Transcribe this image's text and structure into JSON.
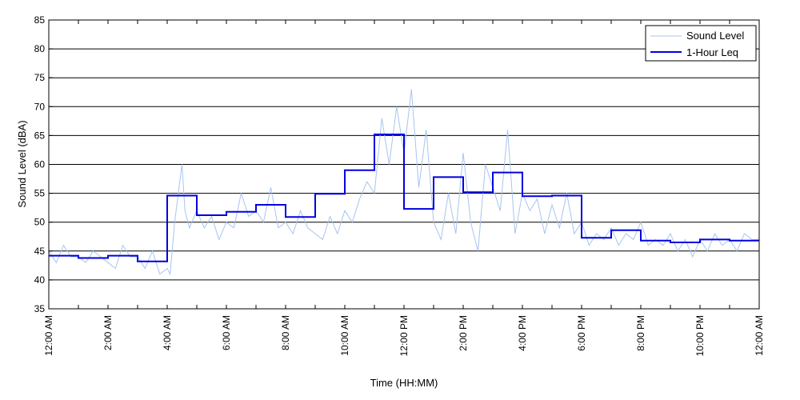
{
  "chart_data": {
    "type": "line",
    "title": "",
    "xlabel": "Time (HH:MM)",
    "ylabel": "Sound Level (dBA)",
    "ylim": [
      35,
      85
    ],
    "xlim": [
      0,
      24
    ],
    "yticks": [
      35,
      40,
      45,
      50,
      55,
      60,
      65,
      70,
      75,
      80,
      85
    ],
    "xticks": [
      0,
      2,
      4,
      6,
      8,
      10,
      12,
      14,
      16,
      18,
      20,
      22,
      24
    ],
    "xtick_labels": [
      "12:00 AM",
      "2:00 AM",
      "4:00 AM",
      "6:00 AM",
      "8:00 AM",
      "10:00 AM",
      "12:00 PM",
      "2:00 PM",
      "4:00 PM",
      "6:00 PM",
      "8:00 PM",
      "10:00 PM",
      "12:00 AM"
    ],
    "grid": "horizontal",
    "legend_position": "top-right",
    "series": [
      {
        "name": "Sound Level",
        "color": "#a8c4f0",
        "style": "thin-line",
        "x": [
          0,
          0.25,
          0.5,
          0.75,
          1,
          1.25,
          1.5,
          1.75,
          2,
          2.25,
          2.5,
          2.75,
          3,
          3.25,
          3.5,
          3.75,
          4,
          4.1,
          4.25,
          4.5,
          4.6,
          4.75,
          5,
          5.25,
          5.5,
          5.75,
          6,
          6.25,
          6.5,
          6.75,
          7,
          7.25,
          7.5,
          7.75,
          8,
          8.25,
          8.5,
          8.75,
          9,
          9.25,
          9.5,
          9.75,
          10,
          10.25,
          10.5,
          10.75,
          11,
          11.25,
          11.5,
          11.75,
          12,
          12.25,
          12.5,
          12.75,
          13,
          13.25,
          13.5,
          13.75,
          14,
          14.25,
          14.5,
          14.75,
          15,
          15.25,
          15.5,
          15.75,
          16,
          16.25,
          16.5,
          16.75,
          17,
          17.25,
          17.5,
          17.75,
          18,
          18.25,
          18.5,
          18.75,
          19,
          19.25,
          19.5,
          19.75,
          20,
          20.25,
          20.5,
          20.75,
          21,
          21.25,
          21.5,
          21.75,
          22,
          22.25,
          22.5,
          22.75,
          23,
          23.25,
          23.5,
          23.75,
          24
        ],
        "y": [
          45,
          43,
          46,
          44,
          44,
          43,
          45,
          44,
          43,
          42,
          46,
          44,
          44,
          42,
          45,
          41,
          42,
          41,
          50,
          60,
          52,
          49,
          52,
          49,
          51,
          47,
          50,
          49,
          55,
          51,
          52,
          50,
          56,
          49,
          50,
          48,
          52,
          49,
          48,
          47,
          51,
          48,
          52,
          50,
          54,
          57,
          55,
          68,
          60,
          70,
          62,
          73,
          56,
          66,
          50,
          47,
          55,
          48,
          62,
          50,
          45,
          60,
          56,
          52,
          66,
          48,
          55,
          52,
          54,
          48,
          53,
          49,
          55,
          48,
          50,
          46,
          48,
          47,
          49,
          46,
          48,
          47,
          50,
          46,
          47,
          46,
          48,
          45,
          47,
          44,
          47,
          45,
          48,
          46,
          47,
          45,
          48,
          47,
          47
        ]
      },
      {
        "name": "1-Hour Leq",
        "color": "#0000e0",
        "style": "step",
        "x": [
          0,
          1,
          2,
          3,
          4,
          5,
          6,
          7,
          8,
          9,
          10,
          11,
          12,
          13,
          14,
          15,
          16,
          17,
          18,
          19,
          20,
          21,
          22,
          23,
          24
        ],
        "y": [
          44.2,
          43.8,
          44.2,
          43.2,
          54.6,
          51.2,
          51.8,
          53.0,
          50.9,
          54.9,
          59.0,
          65.2,
          52.3,
          57.8,
          55.2,
          58.6,
          54.5,
          54.6,
          47.3,
          48.6,
          46.8,
          46.5,
          47.0,
          46.8,
          46.8
        ]
      }
    ]
  }
}
